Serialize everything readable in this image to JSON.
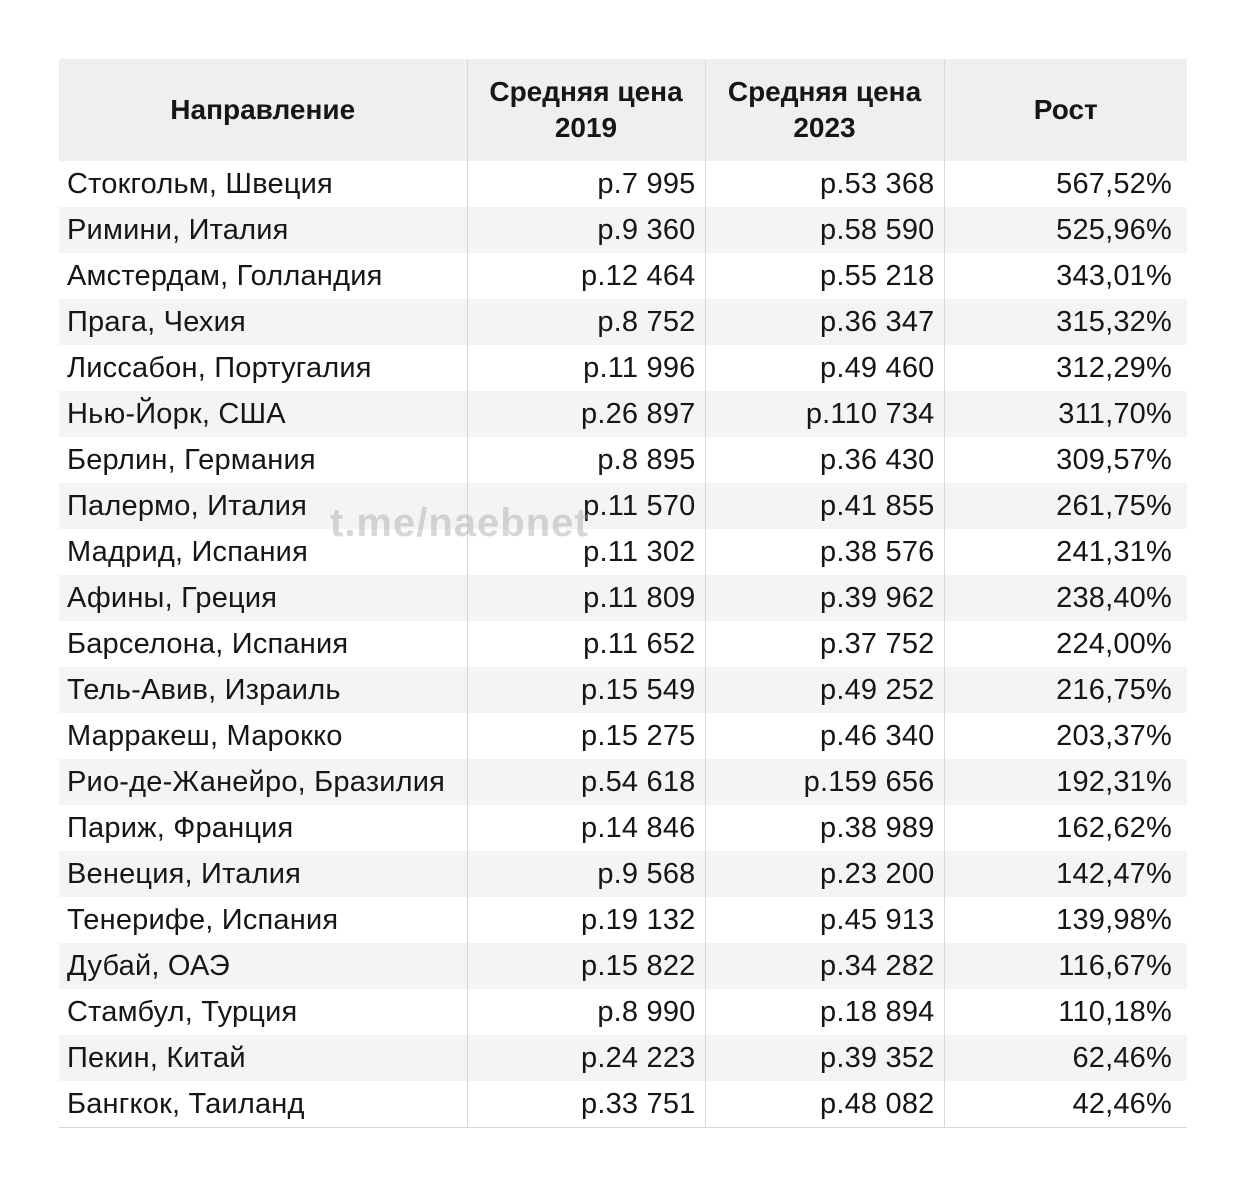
{
  "watermark": "t.me/naebnet",
  "table": {
    "columns": [
      {
        "label": "Направление"
      },
      {
        "label": "Средняя цена 2019"
      },
      {
        "label": "Средняя цена 2023"
      },
      {
        "label": "Рост"
      }
    ],
    "rows": [
      {
        "destination": "Стокгольм, Швеция",
        "price_2019": "р.7 995",
        "price_2023": "р.53 368",
        "growth": "567,52%"
      },
      {
        "destination": "Римини, Италия",
        "price_2019": "р.9 360",
        "price_2023": "р.58 590",
        "growth": "525,96%"
      },
      {
        "destination": "Амстердам, Голландия",
        "price_2019": "р.12 464",
        "price_2023": "р.55 218",
        "growth": "343,01%"
      },
      {
        "destination": "Прага, Чехия",
        "price_2019": "р.8 752",
        "price_2023": "р.36 347",
        "growth": "315,32%"
      },
      {
        "destination": "Лиссабон, Португалия",
        "price_2019": "р.11 996",
        "price_2023": "р.49 460",
        "growth": "312,29%"
      },
      {
        "destination": "Нью-Йорк, США",
        "price_2019": "р.26 897",
        "price_2023": "р.110 734",
        "growth": "311,70%"
      },
      {
        "destination": "Берлин, Германия",
        "price_2019": "р.8 895",
        "price_2023": "р.36 430",
        "growth": "309,57%"
      },
      {
        "destination": "Палермо, Италия",
        "price_2019": "р.11 570",
        "price_2023": "р.41 855",
        "growth": "261,75%"
      },
      {
        "destination": "Мадрид, Испания",
        "price_2019": "р.11 302",
        "price_2023": "р.38 576",
        "growth": "241,31%"
      },
      {
        "destination": "Афины, Греция",
        "price_2019": "р.11 809",
        "price_2023": "р.39 962",
        "growth": "238,40%"
      },
      {
        "destination": "Барселона, Испания",
        "price_2019": "р.11 652",
        "price_2023": "р.37 752",
        "growth": "224,00%"
      },
      {
        "destination": "Тель-Авив, Израиль",
        "price_2019": "р.15 549",
        "price_2023": "р.49 252",
        "growth": "216,75%"
      },
      {
        "destination": "Марракеш, Марокко",
        "price_2019": "р.15 275",
        "price_2023": "р.46 340",
        "growth": "203,37%"
      },
      {
        "destination": "Рио-де-Жанейро, Бразилия",
        "price_2019": "р.54 618",
        "price_2023": "р.159 656",
        "growth": "192,31%"
      },
      {
        "destination": "Париж, Франция",
        "price_2019": "р.14 846",
        "price_2023": "р.38 989",
        "growth": "162,62%"
      },
      {
        "destination": "Венеция, Италия",
        "price_2019": "р.9 568",
        "price_2023": "р.23 200",
        "growth": "142,47%"
      },
      {
        "destination": "Тенерифе, Испания",
        "price_2019": "р.19 132",
        "price_2023": "р.45 913",
        "growth": "139,98%"
      },
      {
        "destination": "Дубай, ОАЭ",
        "price_2019": "р.15 822",
        "price_2023": "р.34 282",
        "growth": "116,67%"
      },
      {
        "destination": "Стамбул, Турция",
        "price_2019": "р.8 990",
        "price_2023": "р.18 894",
        "growth": "110,18%"
      },
      {
        "destination": "Пекин, Китай",
        "price_2019": "р.24 223",
        "price_2023": "р.39 352",
        "growth": "62,46%"
      },
      {
        "destination": "Бангкок, Таиланд",
        "price_2019": "р.33 751",
        "price_2023": "р.48 082",
        "growth": "42,46%"
      }
    ]
  },
  "chart_data": {
    "type": "table",
    "title": "",
    "columns": [
      "Направление",
      "Средняя цена 2019",
      "Средняя цена 2023",
      "Рост"
    ],
    "currency_prefix": "р.",
    "rows": [
      [
        "Стокгольм, Швеция",
        7995,
        53368,
        567.52
      ],
      [
        "Римини, Италия",
        9360,
        58590,
        525.96
      ],
      [
        "Амстердам, Голландия",
        12464,
        55218,
        343.01
      ],
      [
        "Прага, Чехия",
        8752,
        36347,
        315.32
      ],
      [
        "Лиссабон, Португалия",
        11996,
        49460,
        312.29
      ],
      [
        "Нью-Йорк, США",
        26897,
        110734,
        311.7
      ],
      [
        "Берлин, Германия",
        8895,
        36430,
        309.57
      ],
      [
        "Палермо, Италия",
        11570,
        41855,
        261.75
      ],
      [
        "Мадрид, Испания",
        11302,
        38576,
        241.31
      ],
      [
        "Афины, Греция",
        11809,
        39962,
        238.4
      ],
      [
        "Барселона, Испания",
        11652,
        37752,
        224.0
      ],
      [
        "Тель-Авив, Израиль",
        15549,
        49252,
        216.75
      ],
      [
        "Марракеш, Марокко",
        15275,
        46340,
        203.37
      ],
      [
        "Рио-де-Жанейро, Бразилия",
        54618,
        159656,
        192.31
      ],
      [
        "Париж, Франция",
        14846,
        38989,
        162.62
      ],
      [
        "Венеция, Италия",
        9568,
        23200,
        142.47
      ],
      [
        "Тенерифе, Испания",
        19132,
        45913,
        139.98
      ],
      [
        "Дубай, ОАЭ",
        15822,
        34282,
        116.67
      ],
      [
        "Стамбул, Турция",
        8990,
        18894,
        110.18
      ],
      [
        "Пекин, Китай",
        24223,
        39352,
        62.46
      ],
      [
        "Бангкок, Таиланд",
        33751,
        48082,
        42.46
      ]
    ],
    "colors": {
      "header_bg": "#efefef",
      "stripe_bg": "#f4f4f4",
      "row_bg": "#ffffff",
      "border": "#d8d8d8",
      "text": "#161616",
      "watermark": "#d2d2d2"
    }
  }
}
